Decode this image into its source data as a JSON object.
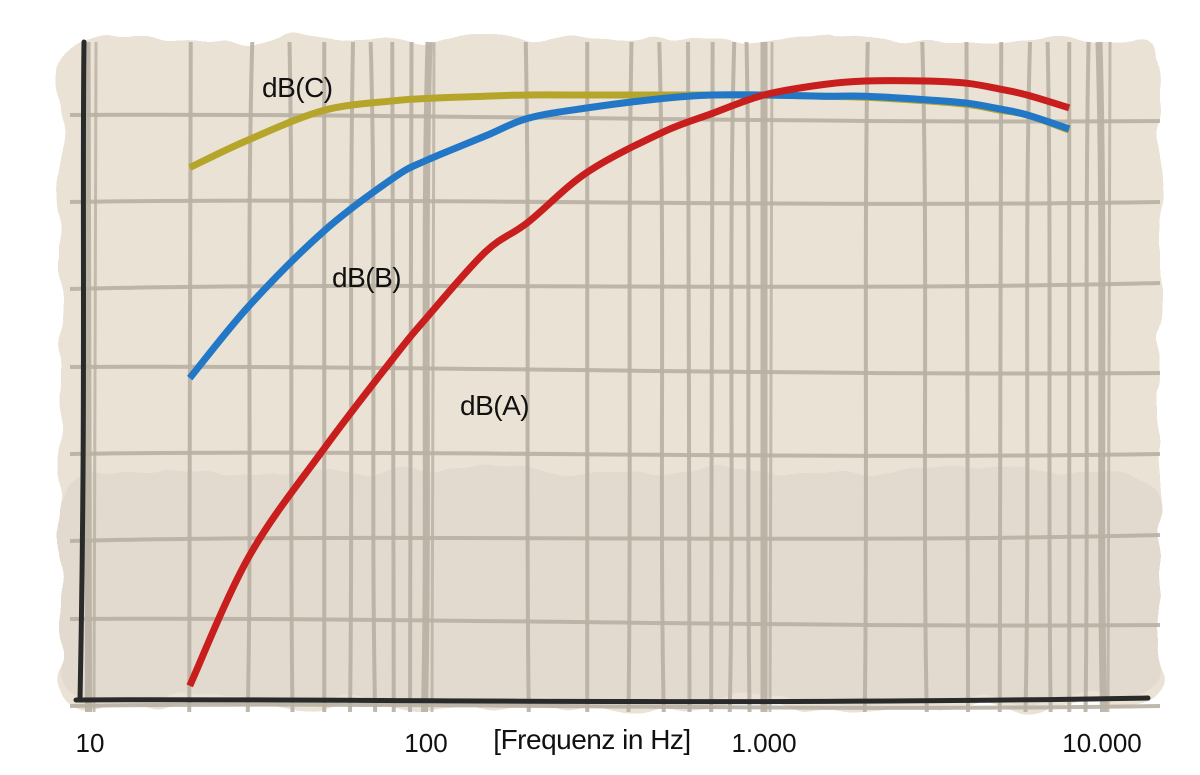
{
  "chart_data": {
    "type": "line",
    "title": "",
    "xlabel": "[Frequenz in Hz]",
    "ylabel": "",
    "x_scale": "log",
    "xlim": [
      10,
      10000
    ],
    "x_ticks": [
      {
        "value": 10,
        "label": "10"
      },
      {
        "value": 100,
        "label": "100"
      },
      {
        "value": 1000,
        "label": "1.000"
      },
      {
        "value": 10000,
        "label": "10.000"
      }
    ],
    "ylim": [
      -50,
      2
    ],
    "grid": true,
    "colors": {
      "dB(A)": "#c81e1e",
      "dB(B)": "#2277c6",
      "dB(C)": "#b5a52a",
      "grid": "#b8b0a3",
      "axis": "#2a2a2a",
      "paper": "#e9e2d5"
    },
    "series": [
      {
        "name": "dB(A)",
        "x": [
          20,
          30,
          50,
          80,
          100,
          150,
          200,
          300,
          500,
          700,
          1000,
          1500,
          2000,
          3000,
          4000,
          5000,
          6000,
          8000
        ],
        "y": [
          -50.5,
          -39.4,
          -30.2,
          -22.5,
          -19.1,
          -13.4,
          -10.9,
          -6.6,
          -3.2,
          -1.6,
          0.0,
          0.9,
          1.2,
          1.2,
          1.0,
          0.5,
          0.0,
          -1.1
        ]
      },
      {
        "name": "dB(B)",
        "x": [
          20,
          30,
          50,
          80,
          100,
          150,
          200,
          300,
          500,
          700,
          1000,
          1500,
          2000,
          3000,
          4000,
          5000,
          6000,
          8000
        ],
        "y": [
          -24.2,
          -18.0,
          -11.6,
          -7.1,
          -5.6,
          -3.5,
          -2.0,
          -1.1,
          -0.3,
          0.0,
          0.0,
          -0.1,
          -0.1,
          -0.4,
          -0.7,
          -1.2,
          -1.7,
          -2.9
        ]
      },
      {
        "name": "dB(C)",
        "x": [
          20,
          30,
          50,
          80,
          100,
          150,
          200,
          300,
          500,
          700,
          1000,
          1500,
          2000,
          3000,
          4000,
          5000,
          6000,
          8000
        ],
        "y": [
          -6.2,
          -3.8,
          -1.3,
          -0.5,
          -0.3,
          -0.1,
          0.0,
          0.0,
          0.0,
          0.0,
          0.0,
          -0.1,
          -0.2,
          -0.5,
          -0.8,
          -1.3,
          -1.7,
          -3.0
        ]
      }
    ]
  }
}
